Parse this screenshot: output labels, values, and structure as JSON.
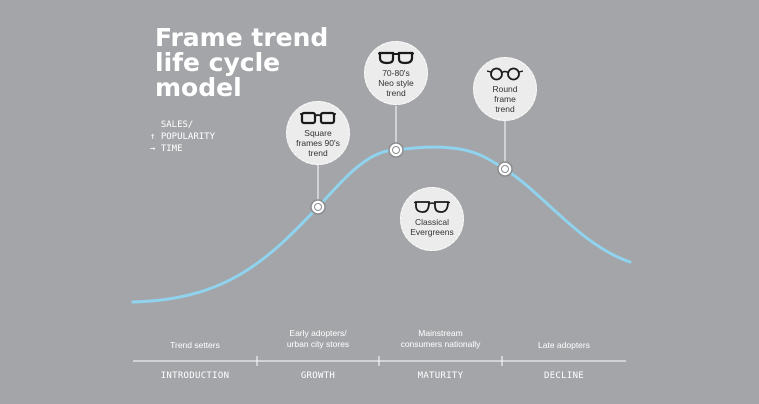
{
  "title": {
    "line1": "Frame trend",
    "line2": "life cycle",
    "line3": "model"
  },
  "legend": {
    "line1": "  SALES/",
    "line2": "↑ POPULARITY",
    "line3": "→ TIME"
  },
  "colors": {
    "background": "#a3a5a8",
    "curve": "#8fd3ee",
    "bubble": "#ececec",
    "text_dark": "#333333"
  },
  "bubbles": [
    {
      "icon": "glasses-square-icon",
      "line1": "Square",
      "line2": "frames 90's",
      "line3": "trend"
    },
    {
      "icon": "glasses-neo-icon",
      "line1": "70-80's",
      "line2": "Neo style",
      "line3": "trend"
    },
    {
      "icon": "glasses-classical-icon",
      "line1": "Classical",
      "line2": "Evergreens"
    },
    {
      "icon": "glasses-round-icon",
      "line1": "Round",
      "line2": "frame",
      "line3": "trend"
    }
  ],
  "stages": [
    {
      "name": "INTRODUCTION",
      "desc1": "Trend setters",
      "desc2": ""
    },
    {
      "name": "GROWTH",
      "desc1": "Early adopters/",
      "desc2": "urban city stores"
    },
    {
      "name": "MATURITY",
      "desc1": "Mainstream",
      "desc2": "consumers nationally"
    },
    {
      "name": "DECLINE",
      "desc1": "Late adopters",
      "desc2": ""
    }
  ]
}
